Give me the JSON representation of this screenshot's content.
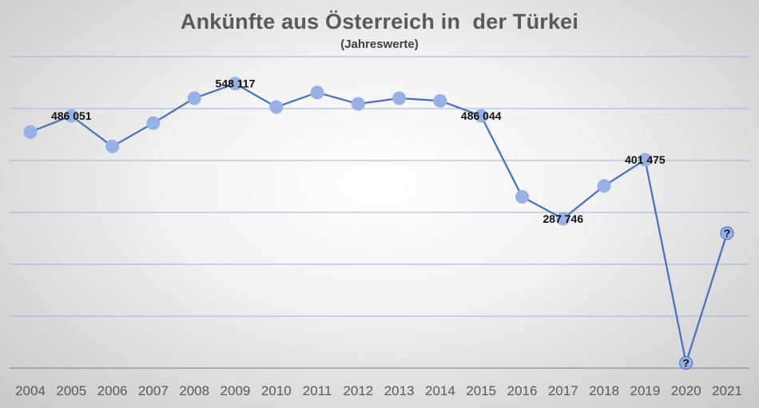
{
  "chart_data": {
    "type": "line",
    "title": "Ankünfte aus Österreich in  der Türkei",
    "subtitle": "(Jahreswerte)",
    "xlabel": "",
    "ylabel": "",
    "categories": [
      "2004",
      "2005",
      "2006",
      "2007",
      "2008",
      "2009",
      "2010",
      "2011",
      "2012",
      "2013",
      "2014",
      "2015",
      "2016",
      "2017",
      "2018",
      "2019",
      "2020",
      "2021"
    ],
    "series": [
      {
        "color": "#4472c4",
        "marker_color": "#97b0e6",
        "values": [
          455000,
          486051,
          427000,
          472000,
          520000,
          548117,
          503000,
          531000,
          509000,
          520000,
          515000,
          486044,
          330000,
          287746,
          351000,
          401475,
          10000,
          260000
        ],
        "value_labels": [
          "",
          "486 051",
          "",
          "",
          "",
          "548 117",
          "",
          "",
          "",
          "",
          "",
          "486 044",
          "",
          "287 746",
          "",
          "401 475",
          "?",
          "?"
        ]
      }
    ],
    "ylim": [
      0,
      600000
    ],
    "y_grid_step": 100000,
    "y_tick_labels_shown": false,
    "grid": true,
    "legend": "none"
  }
}
